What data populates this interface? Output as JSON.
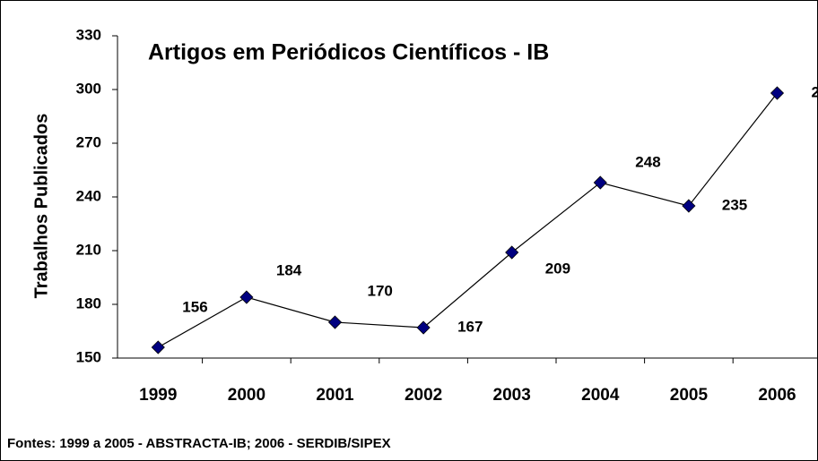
{
  "chart_data": {
    "type": "line",
    "title": "Artigos em Periódicos Científicos - IB",
    "y_label": "Trabalhos Publicados",
    "categories": [
      "1999",
      "2000",
      "2001",
      "2002",
      "2003",
      "2004",
      "2005",
      "2006"
    ],
    "series": [
      {
        "name": "Artigos",
        "color": "#000080",
        "values": [
          156,
          184,
          170,
          167,
          209,
          248,
          235,
          298
        ]
      }
    ],
    "ylim": [
      150,
      330
    ],
    "yticks": [
      150,
      180,
      210,
      240,
      270,
      300,
      330
    ],
    "grid": false,
    "footnote": "Fontes: 1999 a 2005 - ABSTRACTA-IB; 2006 - SERDIB/SIPEX"
  }
}
